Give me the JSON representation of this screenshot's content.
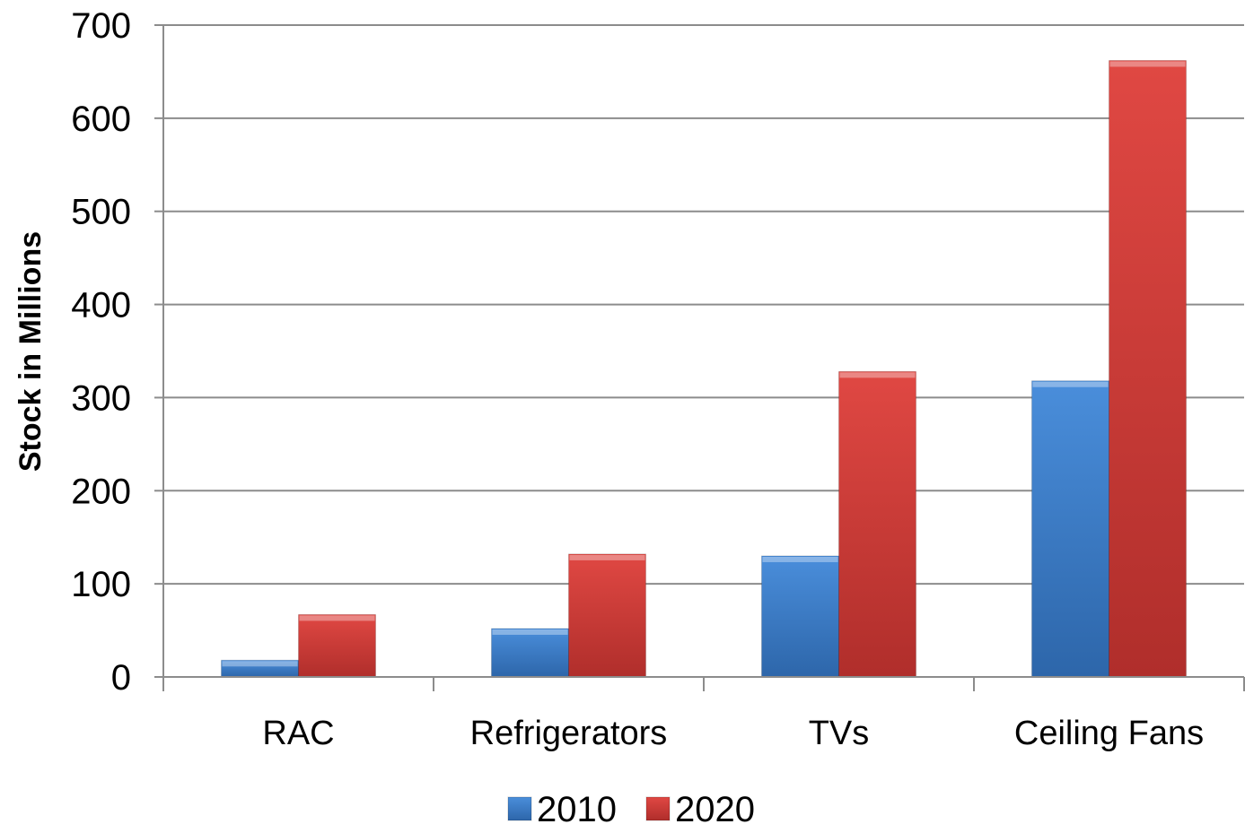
{
  "chart_data": {
    "type": "bar",
    "categories": [
      "RAC",
      "Refrigerators",
      "TVs",
      "Ceiling Fans"
    ],
    "series": [
      {
        "name": "2010",
        "values": [
          18,
          52,
          130,
          318
        ],
        "color": "#3B7BC8"
      },
      {
        "name": "2020",
        "values": [
          67,
          132,
          328,
          662
        ],
        "color": "#D03A36"
      }
    ],
    "ylabel": "Stock in Millions",
    "ylim": [
      0,
      700
    ],
    "yticks": [
      "0",
      "100",
      "200",
      "300",
      "400",
      "500",
      "600",
      "700"
    ],
    "grid": true,
    "legend_position": "bottom"
  }
}
